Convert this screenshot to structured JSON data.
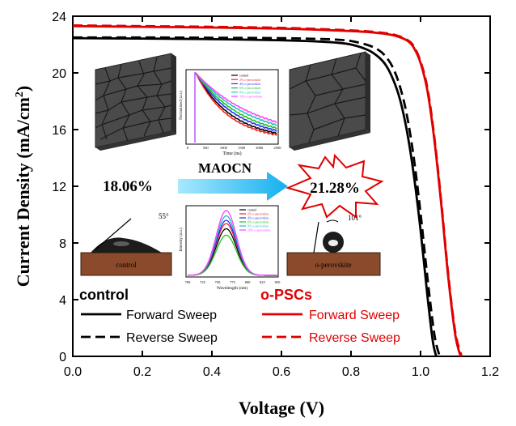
{
  "chart_data": {
    "type": "line",
    "title": "",
    "xlabel": "Voltage (V)",
    "ylabel_main": "Current Density (mA/cm",
    "ylabel_sup": "2",
    "ylabel_close": ")",
    "xlim": [
      0.0,
      1.2
    ],
    "ylim": [
      0,
      24
    ],
    "xticks": [
      0.0,
      0.2,
      0.4,
      0.6,
      0.8,
      1.0,
      1.2
    ],
    "xtick_labels": [
      "0.0",
      "0.2",
      "0.4",
      "0.6",
      "0.8",
      "1.0",
      "1.2"
    ],
    "yticks": [
      0,
      4,
      8,
      12,
      16,
      20,
      24
    ],
    "ytick_labels": [
      "0",
      "4",
      "8",
      "12",
      "16",
      "20",
      "24"
    ],
    "grid": false,
    "series": [
      {
        "name": "control Forward Sweep",
        "color": "#000000",
        "dash": "solid",
        "x": [
          0.0,
          0.2,
          0.4,
          0.6,
          0.7,
          0.75,
          0.8,
          0.85,
          0.88,
          0.9,
          0.92,
          0.94,
          0.96,
          0.98,
          1.0,
          1.02,
          1.035,
          1.045
        ],
        "y": [
          22.45,
          22.42,
          22.38,
          22.3,
          22.22,
          22.15,
          22.0,
          21.6,
          21.1,
          20.55,
          19.6,
          18.2,
          16.0,
          12.9,
          8.9,
          4.2,
          1.1,
          0.0
        ]
      },
      {
        "name": "control Reverse Sweep",
        "color": "#000000",
        "dash": "dashed",
        "x": [
          0.0,
          0.2,
          0.4,
          0.6,
          0.7,
          0.75,
          0.8,
          0.85,
          0.88,
          0.9,
          0.92,
          0.94,
          0.96,
          0.98,
          1.0,
          1.02,
          1.04,
          1.055
        ],
        "y": [
          22.5,
          22.5,
          22.48,
          22.45,
          22.4,
          22.36,
          22.25,
          21.95,
          21.6,
          21.15,
          20.4,
          19.1,
          17.1,
          14.1,
          10.1,
          5.5,
          1.5,
          0.0
        ]
      },
      {
        "name": "o-PSCs Forward Sweep",
        "color": "#e00000",
        "dash": "solid",
        "x": [
          0.0,
          0.2,
          0.4,
          0.6,
          0.7,
          0.8,
          0.85,
          0.9,
          0.93,
          0.96,
          0.98,
          1.0,
          1.02,
          1.04,
          1.06,
          1.08,
          1.1,
          1.115
        ],
        "y": [
          23.3,
          23.25,
          23.2,
          23.12,
          23.05,
          22.95,
          22.88,
          22.75,
          22.6,
          22.3,
          21.8,
          20.7,
          18.7,
          15.2,
          10.6,
          5.5,
          1.5,
          0.0
        ]
      },
      {
        "name": "o-PSCs Reverse Sweep",
        "color": "#e00000",
        "dash": "dashed",
        "x": [
          0.0,
          0.2,
          0.4,
          0.6,
          0.7,
          0.8,
          0.85,
          0.9,
          0.93,
          0.96,
          0.98,
          1.0,
          1.02,
          1.04,
          1.06,
          1.08,
          1.1,
          1.118
        ],
        "y": [
          23.35,
          23.3,
          23.25,
          23.18,
          23.1,
          23.0,
          22.93,
          22.8,
          22.65,
          22.35,
          21.9,
          20.8,
          18.9,
          15.4,
          10.8,
          5.7,
          1.7,
          0.0
        ]
      }
    ],
    "legend": {
      "placement": "bottom-left",
      "control_title": "control",
      "opsc_title": "o-PSCs",
      "forward_label": "Forward Sweep",
      "reverse_label": "Reverse Sweep"
    },
    "annotations": {
      "pce_control": "18.06%",
      "arrow_label": "MAOCN",
      "pce_opsc": "21.28%",
      "angle_control": "55°",
      "angle_opsc": "101°",
      "substrate_control": "control",
      "substrate_opsc": "o-perovskite"
    },
    "inset_trpl": {
      "xlabel": "Time (ns)",
      "ylabel": "Normalized (a.u.)",
      "xtick_labels": [
        "0",
        "500",
        "1000",
        "1500",
        "2000",
        "2500"
      ],
      "legend": [
        "control",
        "2% o-perovskite",
        "4% o-perovskite",
        "6% o-perovskite",
        "8% o-perovskite",
        "10% o-perovskite"
      ],
      "colors": [
        "#000000",
        "#ff2020",
        "#2030ff",
        "#20c020",
        "#20c0c0",
        "#ff40ff"
      ],
      "lifetimes": [
        1.0,
        0.9,
        1.15,
        1.3,
        1.5,
        1.7
      ]
    },
    "inset_pl": {
      "xlabel": "Wavelength (nm)",
      "ylabel": "Intensity (a.u.)",
      "xtick_labels": [
        "700",
        "725",
        "750",
        "775",
        "800",
        "825",
        "850"
      ],
      "legend": [
        "control",
        "2% o-perovskite",
        "4% o-perovskite",
        "6% o-perovskite",
        "8% o-perovskite",
        "10% o-perovskite"
      ],
      "colors": [
        "#000000",
        "#ff2020",
        "#2030ff",
        "#20c020",
        "#20c0c0",
        "#ff40ff"
      ],
      "intensities": [
        0.72,
        0.8,
        0.85,
        0.62,
        0.92,
        1.0
      ]
    }
  }
}
